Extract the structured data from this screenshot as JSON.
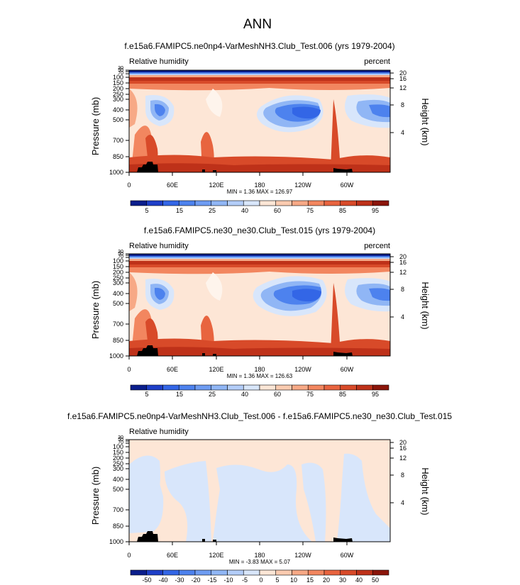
{
  "figure": {
    "title": "ANN"
  },
  "panels": [
    {
      "subtitle": "f.e15a6.FAMIPC5.ne0np4-VarMeshNH3.Club_Test.006 (yrs 1979-2004)",
      "left_label": "Relative humidity",
      "right_label": "percent",
      "minmax": "MIN =   1.36  MAX = 126.97"
    },
    {
      "subtitle": "f.e15a6.FAMIPC5.ne30_ne30.Club_Test.015 (yrs 1979-2004)",
      "left_label": "Relative humidity",
      "right_label": "percent",
      "minmax": "MIN =   1.36  MAX = 126.63"
    },
    {
      "subtitle": "f.e15a6.FAMIPC5.ne0np4-VarMeshNH3.Club_Test.006 - f.e15a6.FAMIPC5.ne30_ne30.Club_Test.015",
      "left_label": "Relative humidity",
      "right_label": "",
      "minmax": "MIN =  -3.83  MAX =   5.07"
    }
  ],
  "chart_data": [
    {
      "type": "heatmap",
      "title": "f.e15a6.FAMIPC5.ne0np4-VarMeshNH3.Club_Test.006 (yrs 1979-2004)",
      "variable": "Relative humidity",
      "units": "percent",
      "xlabel": "",
      "ylabel": "Pressure (mb)",
      "ylabel_right": "Height (km)",
      "x_ticks": [
        "0",
        "60E",
        "120E",
        "180",
        "120W",
        "60W"
      ],
      "y_ticks": [
        "1000",
        "850",
        "700",
        "500",
        "400",
        "300",
        "250",
        "200",
        "150",
        "100",
        "70",
        "50",
        "30"
      ],
      "y_ticks_right": [
        "4",
        "8",
        "12",
        "16",
        "20"
      ],
      "min": 1.36,
      "max": 126.97,
      "colorbar_labels": [
        "5",
        "15",
        "25",
        "40",
        "60",
        "75",
        "85",
        "95"
      ]
    },
    {
      "type": "heatmap",
      "title": "f.e15a6.FAMIPC5.ne30_ne30.Club_Test.015 (yrs 1979-2004)",
      "variable": "Relative humidity",
      "units": "percent",
      "xlabel": "",
      "ylabel": "Pressure (mb)",
      "ylabel_right": "Height (km)",
      "x_ticks": [
        "0",
        "60E",
        "120E",
        "180",
        "120W",
        "60W"
      ],
      "y_ticks": [
        "1000",
        "850",
        "700",
        "500",
        "400",
        "300",
        "250",
        "200",
        "150",
        "100",
        "70",
        "50",
        "30"
      ],
      "y_ticks_right": [
        "4",
        "8",
        "12",
        "16",
        "20"
      ],
      "min": 1.36,
      "max": 126.63,
      "colorbar_labels": [
        "5",
        "15",
        "25",
        "40",
        "60",
        "75",
        "85",
        "95"
      ]
    },
    {
      "type": "heatmap",
      "title": "f.e15a6.FAMIPC5.ne0np4-VarMeshNH3.Club_Test.006 - f.e15a6.FAMIPC5.ne30_ne30.Club_Test.015",
      "variable": "Relative humidity",
      "xlabel": "",
      "ylabel": "Pressure (mb)",
      "ylabel_right": "Height (km)",
      "x_ticks": [
        "0",
        "60E",
        "120E",
        "180",
        "120W",
        "60W"
      ],
      "y_ticks": [
        "1000",
        "850",
        "700",
        "500",
        "400",
        "300",
        "250",
        "200",
        "150",
        "100",
        "70",
        "50",
        "30"
      ],
      "y_ticks_right": [
        "4",
        "8",
        "12",
        "16",
        "20"
      ],
      "min": -3.83,
      "max": 5.07,
      "colorbar_labels": [
        "-50",
        "-40",
        "-30",
        "-20",
        "-15",
        "-10",
        "-5",
        "0",
        "5",
        "10",
        "15",
        "20",
        "30",
        "40",
        "50"
      ]
    }
  ],
  "colors": {
    "rh_scale": [
      "#0a1e8c",
      "#1e3fc8",
      "#3366e6",
      "#4d82ee",
      "#6e9cf2",
      "#90b6f5",
      "#b3cdf8",
      "#d8e6fb",
      "#fde6d6",
      "#fbcbb0",
      "#f7a986",
      "#f2865f",
      "#e8643f",
      "#d84a29",
      "#be3119",
      "#8b150a"
    ],
    "diff_scale": [
      "#0a1e8c",
      "#1e3fc8",
      "#3366e6",
      "#4d82ee",
      "#6e9cf2",
      "#90b6f5",
      "#b3cdf8",
      "#d8e6fb",
      "#fde6d6",
      "#fbcbb0",
      "#f7a986",
      "#f2865f",
      "#e8643f",
      "#d84a29",
      "#be3119",
      "#8b150a"
    ],
    "diff_neg": "#d8e6fb",
    "diff_pos": "#fde6d6",
    "terrain": "#000000"
  }
}
